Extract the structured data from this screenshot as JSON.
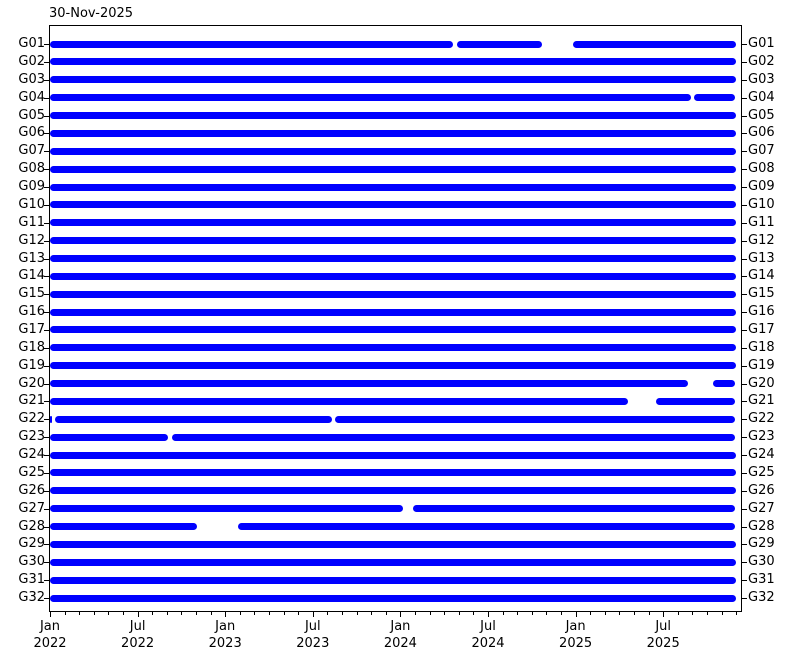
{
  "title": "30-Nov-2025",
  "colors": {
    "bar": "#0000ff",
    "axis": "#000000",
    "background": "#ffffff",
    "text": "#000000"
  },
  "chart_data": {
    "type": "bar",
    "subtype": "horizontal-availability-timeline",
    "title": "30-Nov-2025",
    "xlabel": "",
    "ylabel": "",
    "x_range": [
      "2022-01-01",
      "2025-12-01"
    ],
    "x_major_tick_labels": [
      {
        "month": "Jan",
        "year": "2022"
      },
      {
        "month": "Jul",
        "year": "2022"
      },
      {
        "month": "Jan",
        "year": "2023"
      },
      {
        "month": "Jul",
        "year": "2023"
      },
      {
        "month": "Jan",
        "year": "2024"
      },
      {
        "month": "Jul",
        "year": "2024"
      },
      {
        "month": "Jan",
        "year": "2025"
      },
      {
        "month": "Jul",
        "year": "2025"
      }
    ],
    "minor_tick_unit": "month",
    "grid": false,
    "legend": false,
    "categories": [
      "G01",
      "G02",
      "G03",
      "G04",
      "G05",
      "G06",
      "G07",
      "G08",
      "G09",
      "G10",
      "G11",
      "G12",
      "G13",
      "G14",
      "G15",
      "G16",
      "G17",
      "G18",
      "G19",
      "G20",
      "G21",
      "G22",
      "G23",
      "G24",
      "G25",
      "G26",
      "G27",
      "G28",
      "G29",
      "G30",
      "G31",
      "G32"
    ],
    "rows": [
      {
        "label": "G01",
        "segments": [
          [
            "2022-01-01",
            "2024-04-19"
          ],
          [
            "2024-04-27",
            "2024-10-23"
          ],
          [
            "2024-12-26",
            "2025-11-30"
          ]
        ]
      },
      {
        "label": "G02",
        "segments": [
          [
            "2022-01-01",
            "2025-11-30"
          ]
        ]
      },
      {
        "label": "G03",
        "segments": [
          [
            "2022-01-01",
            "2025-11-30"
          ]
        ]
      },
      {
        "label": "G04",
        "segments": [
          [
            "2022-01-01",
            "2025-08-28"
          ],
          [
            "2025-09-04",
            "2025-11-30"
          ]
        ]
      },
      {
        "label": "G05",
        "segments": [
          [
            "2022-01-01",
            "2025-11-30"
          ]
        ]
      },
      {
        "label": "G06",
        "segments": [
          [
            "2022-01-01",
            "2025-11-30"
          ]
        ]
      },
      {
        "label": "G07",
        "segments": [
          [
            "2022-01-01",
            "2025-11-30"
          ]
        ]
      },
      {
        "label": "G08",
        "segments": [
          [
            "2022-01-01",
            "2025-11-30"
          ]
        ]
      },
      {
        "label": "G09",
        "segments": [
          [
            "2022-01-01",
            "2025-11-30"
          ]
        ]
      },
      {
        "label": "G10",
        "segments": [
          [
            "2022-01-01",
            "2025-11-30"
          ]
        ]
      },
      {
        "label": "G11",
        "segments": [
          [
            "2022-01-01",
            "2025-11-30"
          ]
        ]
      },
      {
        "label": "G12",
        "segments": [
          [
            "2022-01-01",
            "2025-11-30"
          ]
        ]
      },
      {
        "label": "G13",
        "segments": [
          [
            "2022-01-01",
            "2025-11-30"
          ]
        ]
      },
      {
        "label": "G14",
        "segments": [
          [
            "2022-01-01",
            "2025-11-30"
          ]
        ]
      },
      {
        "label": "G15",
        "segments": [
          [
            "2022-01-01",
            "2025-11-30"
          ]
        ]
      },
      {
        "label": "G16",
        "segments": [
          [
            "2022-01-01",
            "2025-11-30"
          ]
        ]
      },
      {
        "label": "G17",
        "segments": [
          [
            "2022-01-01",
            "2025-11-30"
          ]
        ]
      },
      {
        "label": "G18",
        "segments": [
          [
            "2022-01-01",
            "2025-11-30"
          ]
        ]
      },
      {
        "label": "G19",
        "segments": [
          [
            "2022-01-01",
            "2025-11-30"
          ]
        ]
      },
      {
        "label": "G20",
        "segments": [
          [
            "2022-01-01",
            "2025-08-22"
          ],
          [
            "2025-10-14",
            "2025-11-30"
          ]
        ]
      },
      {
        "label": "G21",
        "segments": [
          [
            "2022-01-01",
            "2025-04-18"
          ],
          [
            "2025-06-17",
            "2025-11-30"
          ]
        ]
      },
      {
        "label": "G22",
        "segments": [
          [
            "2022-01-01",
            "2022-01-06"
          ],
          [
            "2022-01-12",
            "2023-08-10"
          ],
          [
            "2023-08-17",
            "2025-11-30"
          ]
        ]
      },
      {
        "label": "G23",
        "segments": [
          [
            "2022-01-01",
            "2022-09-03"
          ],
          [
            "2022-09-11",
            "2025-11-30"
          ]
        ]
      },
      {
        "label": "G24",
        "segments": [
          [
            "2022-01-01",
            "2025-11-30"
          ]
        ]
      },
      {
        "label": "G25",
        "segments": [
          [
            "2022-01-01",
            "2025-11-30"
          ]
        ]
      },
      {
        "label": "G26",
        "segments": [
          [
            "2022-01-01",
            "2025-11-30"
          ]
        ]
      },
      {
        "label": "G27",
        "segments": [
          [
            "2022-01-01",
            "2024-01-07"
          ],
          [
            "2024-01-27",
            "2025-11-30"
          ]
        ]
      },
      {
        "label": "G28",
        "segments": [
          [
            "2022-01-01",
            "2022-11-03"
          ],
          [
            "2023-01-27",
            "2025-11-30"
          ]
        ]
      },
      {
        "label": "G29",
        "segments": [
          [
            "2022-01-01",
            "2025-11-30"
          ]
        ]
      },
      {
        "label": "G30",
        "segments": [
          [
            "2022-01-01",
            "2025-11-30"
          ]
        ]
      },
      {
        "label": "G31",
        "segments": [
          [
            "2022-01-01",
            "2025-11-30"
          ]
        ]
      },
      {
        "label": "G32",
        "segments": [
          [
            "2022-01-01",
            "2025-11-30"
          ]
        ]
      }
    ]
  }
}
